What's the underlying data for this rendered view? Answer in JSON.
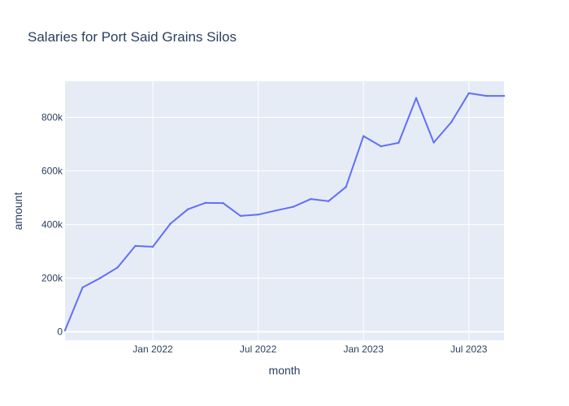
{
  "chart_data": {
    "type": "line",
    "title": "Salaries for Port Said Grains Silos",
    "xlabel": "month",
    "ylabel": "amount",
    "x": [
      "2021-08",
      "2021-09",
      "2021-10",
      "2021-11",
      "2021-12",
      "2022-01",
      "2022-02",
      "2022-03",
      "2022-04",
      "2022-05",
      "2022-06",
      "2022-07",
      "2022-08",
      "2022-09",
      "2022-10",
      "2022-11",
      "2022-12",
      "2023-01",
      "2023-02",
      "2023-03",
      "2023-04",
      "2023-05",
      "2023-06",
      "2023-07",
      "2023-08",
      "2023-09"
    ],
    "series": [
      {
        "values": [
          5000,
          165000,
          200000,
          240000,
          320000,
          317000,
          403000,
          457000,
          481000,
          480000,
          432000,
          437000,
          452000,
          466000,
          495000,
          487000,
          540000,
          730000,
          692000,
          705000,
          872000,
          706000,
          782000,
          890000,
          880000,
          880000
        ]
      }
    ],
    "x_ticks": [
      "Jan 2022",
      "Jul 2022",
      "Jan 2023",
      "Jul 2023"
    ],
    "x_tick_values": [
      "2022-01",
      "2022-07",
      "2023-01",
      "2023-07"
    ],
    "y_ticks": [
      "0",
      "200k",
      "400k",
      "600k",
      "800k"
    ],
    "y_tick_values": [
      0,
      200000,
      400000,
      600000,
      800000
    ],
    "ylim": [
      -32000,
      935000
    ],
    "xlim": [
      "2021-08",
      "2023-09"
    ],
    "grid": true,
    "colors": {
      "line": "#636efa",
      "plot_bg": "#e5ecf6",
      "grid": "#ffffff",
      "text": "#2a3f5f"
    }
  }
}
